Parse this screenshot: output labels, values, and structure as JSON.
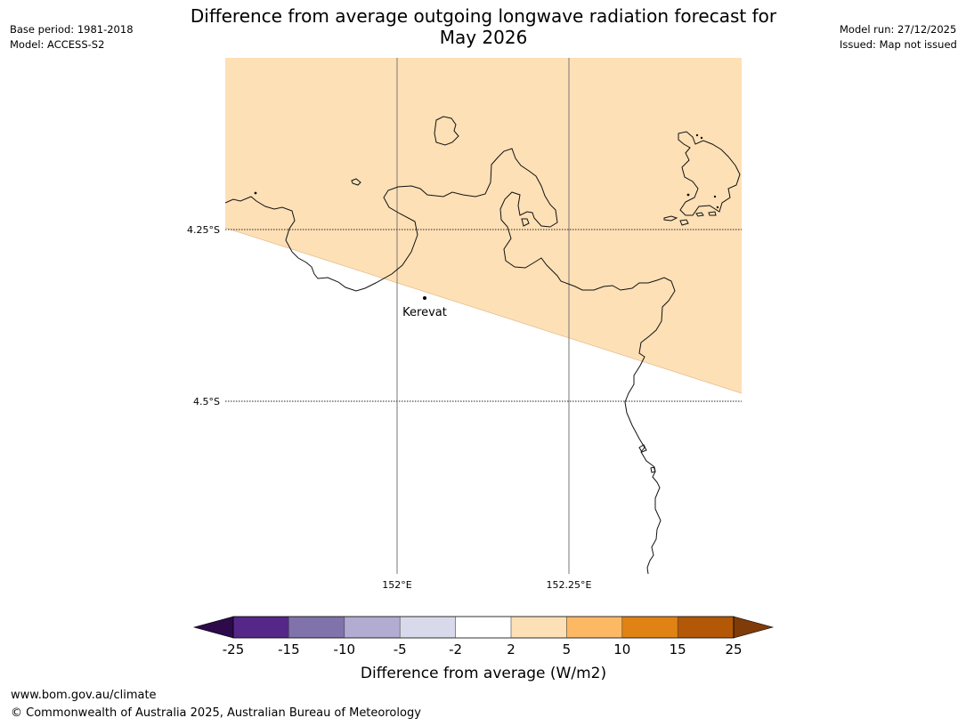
{
  "title": {
    "line1": "Difference from average outgoing longwave radiation forecast for",
    "line2": "May 2026"
  },
  "meta_left": {
    "base_period": "Base period: 1981-2018",
    "model": "Model: ACCESS-S2"
  },
  "meta_right": {
    "model_run": "Model run: 27/12/2025",
    "issued": "Issued: Map not issued"
  },
  "map": {
    "lat_labels": [
      "4.25°S",
      "4.5°S"
    ],
    "lon_labels": [
      "152°E",
      "152.25°E"
    ],
    "place": {
      "name": "Kerevat"
    },
    "shaded_category": "2 to 5"
  },
  "colorbar": {
    "tick_labels": [
      "-25",
      "-15",
      "-10",
      "-5",
      "-2",
      "2",
      "5",
      "10",
      "15",
      "25"
    ],
    "label": "Difference from average (W/m2)",
    "colors": [
      "#2d0a4a",
      "#542788",
      "#8073ac",
      "#b2abd2",
      "#d8daeb",
      "#ffffff",
      "#fee0b6",
      "#fdb863",
      "#e08214",
      "#b35806",
      "#7f3b08"
    ]
  },
  "footer": {
    "url": "www.bom.gov.au/climate",
    "copyright": "© Commonwealth of Australia 2025, Australian Bureau of Meteorology"
  }
}
